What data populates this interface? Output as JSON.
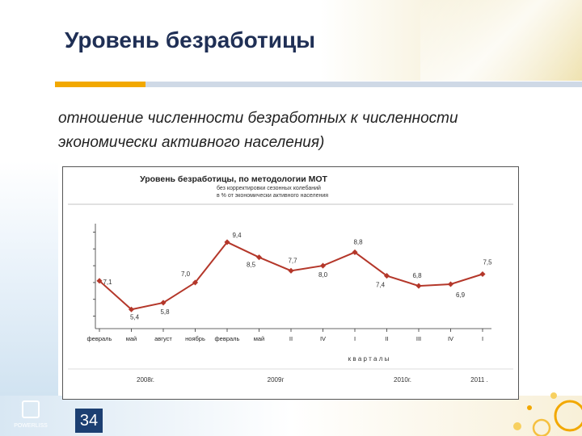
{
  "slide": {
    "title": "Уровень безработицы",
    "subtitle": "отношение численности безработных к численности экономически активного населения)",
    "page_number": "34",
    "logo_text": "POWERLISS"
  },
  "colors": {
    "line": "#b4372a",
    "title": "#1f2f55",
    "accent": "#f2a800",
    "page_badge": "#1c3f72"
  },
  "chart_data": {
    "type": "line",
    "title": "Уровень безработицы, по методологии МОТ",
    "subtitle_lines": [
      "без корректировки сезонных колебаний",
      "в % от экономически активного населения"
    ],
    "categories": [
      "февраль",
      "май",
      "август",
      "ноябрь",
      "февраль",
      "май",
      "II",
      "IV",
      "I",
      "II",
      "III",
      "IV",
      "I"
    ],
    "values": [
      7.1,
      5.4,
      5.8,
      7.0,
      9.4,
      8.5,
      7.7,
      8.0,
      8.8,
      7.4,
      6.8,
      6.9,
      7.5
    ],
    "value_labels": [
      "7,1",
      "5,4",
      "5,8",
      "7,0",
      "9,4",
      "8,5",
      "7,7",
      "8,0",
      "8,8",
      "7,4",
      "6,8",
      "6,9",
      "7,5"
    ],
    "xlabel": "к в а р т а л ы",
    "year_labels": [
      "2008г.",
      "2009г",
      "2010г.",
      "2011 ."
    ],
    "ylim": [
      4.5,
      10.5
    ],
    "grid": false,
    "legend": "none"
  }
}
